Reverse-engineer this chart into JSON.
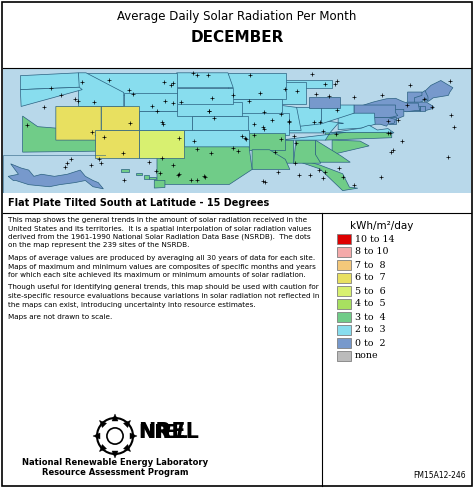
{
  "title_line1": "Average Daily Solar Radiation Per Month",
  "title_line2": "DECEMBER",
  "subtitle": "Flat Plate Tilted South at Latitude - 15 Degrees",
  "bg_color": "#ffffff",
  "ocean_color": "#b8d8ea",
  "border_color": "#000000",
  "legend_title": "kWh/m²/day",
  "legend_entries": [
    {
      "label": "10 to 14",
      "color": "#dd0000"
    },
    {
      "label": "8 to 10",
      "color": "#f4aaaa"
    },
    {
      "label": "7 to  8",
      "color": "#f4c87a"
    },
    {
      "label": "6 to  7",
      "color": "#e8e060"
    },
    {
      "label": "5 to  6",
      "color": "#d8f070"
    },
    {
      "label": "4 to  5",
      "color": "#a8e060"
    },
    {
      "label": "3 to  4",
      "color": "#70cc88"
    },
    {
      "label": "2 to  3",
      "color": "#88ddee"
    },
    {
      "label": "0 to  2",
      "color": "#7799cc"
    },
    {
      "label": "none",
      "color": "#bbbbbb"
    }
  ],
  "body_paragraphs": [
    "This map shows the general trends in the amount of solar radiation received in the\nUnited States and its territories.  It is a spatial interpolation of solar radiation values\nderived from the 1961-1990 National Solar Radiation Data Base (NSRDB).  The dots\non the map represent the 239 sites of the NSRDB.",
    "Maps of average values are produced by averaging all 30 years of data for each site.\nMaps of maximum and minimum values are composites of specific months and years\nfor which each site achieved its maximum or minimum amounts of solar radiation.",
    "Though useful for identifying general trends, this map should be used with caution for\nsite-specific resource evaluations because variations in solar radiation not reflected in\nthe maps can exist, introducing uncertainty into resource estimates.",
    "Maps are not drawn to scale."
  ],
  "nrel_line1": "National Renewable Energy Laboratory",
  "nrel_line2": "Resource Assessment Program",
  "footer_id": "FM15A12-246",
  "state_colors": {
    "WA": "#88ddee",
    "OR": "#88ddee",
    "ID": "#88ddee",
    "MT": "#88ddee",
    "WY": "#88ddee",
    "ND": "#88ddee",
    "SD": "#88ddee",
    "MN": "#88ddee",
    "WI": "#88ddee",
    "MI": "#7799cc",
    "NE": "#88ddee",
    "IA": "#88ddee",
    "IL": "#88ddee",
    "IN": "#88ddee",
    "OH": "#88ddee",
    "PA": "#7799cc",
    "NY": "#7799cc",
    "VT": "#7799cc",
    "NH": "#7799cc",
    "ME": "#7799cc",
    "MA": "#7799cc",
    "RI": "#7799cc",
    "CT": "#7799cc",
    "NJ": "#7799cc",
    "DE": "#7799cc",
    "MD": "#7799cc",
    "WV": "#88ddee",
    "VA": "#88ddee",
    "KY": "#88ddee",
    "MO": "#88ddee",
    "KS": "#88ddee",
    "CO": "#88ddee",
    "UT": "#e8e060",
    "NV": "#e8e060",
    "CA_N": "#a8e060",
    "CA_S": "#e8e060",
    "AZ": "#e8e060",
    "NM": "#d8f070",
    "TX": "#70cc88",
    "OK": "#88ddee",
    "AR": "#70cc88",
    "TN": "#88ddee",
    "NC": "#70cc88",
    "SC": "#70cc88",
    "GA": "#70cc88",
    "AL": "#70cc88",
    "MS": "#70cc88",
    "LA": "#70cc88",
    "FL": "#70cc88",
    "DC": "#7799cc",
    "AK_main": "#7799cc",
    "HI": "#70cc88"
  }
}
